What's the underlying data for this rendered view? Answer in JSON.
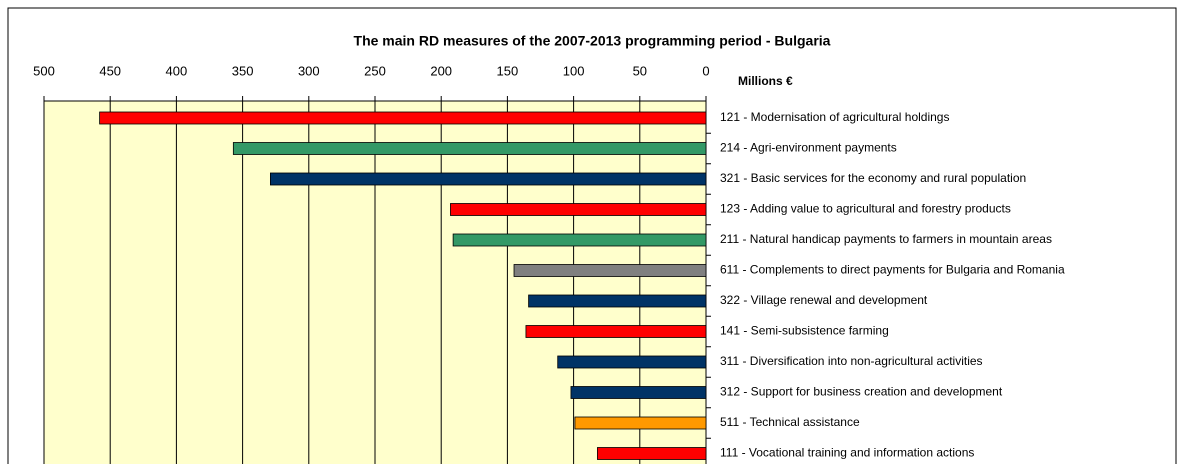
{
  "chart_data": {
    "type": "barh",
    "title": "The main RD measures of the 2007-2013 programming period - Bulgaria",
    "axis_label": "Millions €",
    "categories": [
      "121 - Modernisation of agricultural holdings",
      "214 - Agri-environment payments",
      "321 - Basic services for the economy and rural population",
      "123 - Adding value to agricultural and forestry products",
      "211 - Natural handicap payments to farmers in mountain areas",
      "611 - Complements to direct payments for Bulgaria and Romania",
      "322 - Village renewal and development",
      "141 - Semi-subsistence farming",
      "311 - Diversification into non-agricultural activities",
      "312 - Support for business creation and development",
      "511 - Technical assistance",
      "111 - Vocational training and information actions"
    ],
    "values": [
      458,
      357,
      329,
      193,
      191,
      145,
      134,
      136,
      112,
      102,
      99,
      82
    ],
    "colors": [
      "#ff0000",
      "#339966",
      "#003366",
      "#ff0000",
      "#339966",
      "#808080",
      "#003366",
      "#ff0000",
      "#003366",
      "#003366",
      "#ff9900",
      "#ff0000"
    ],
    "xlim": [
      500,
      0
    ],
    "xticks": [
      500,
      450,
      400,
      350,
      300,
      250,
      200,
      150,
      100,
      50,
      0
    ],
    "grid": true
  }
}
